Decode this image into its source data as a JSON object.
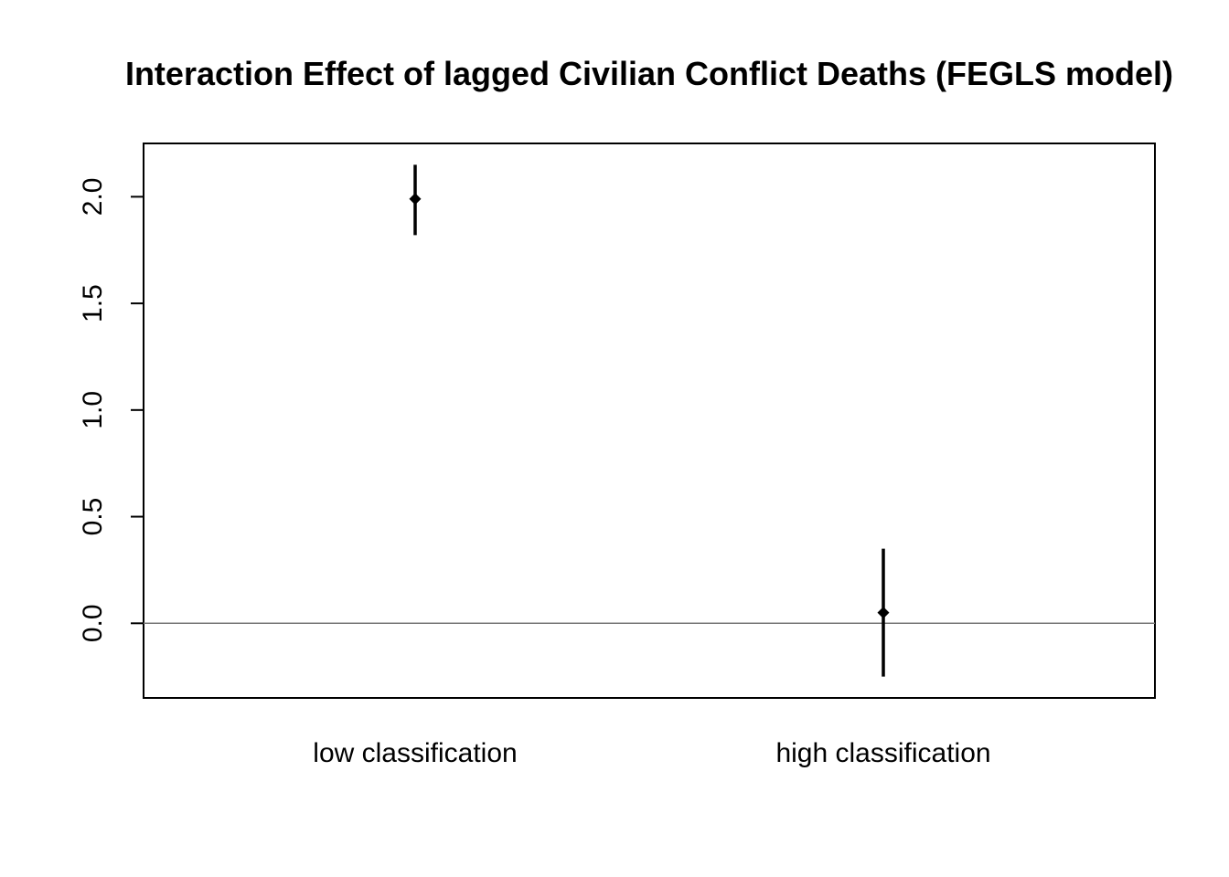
{
  "chart_data": {
    "type": "scatter",
    "title": "Interaction Effect of lagged Civilian Conflict Deaths (FEGLS model)",
    "xlabel": "",
    "ylabel": "",
    "categories": [
      "low classification",
      "high classification"
    ],
    "series": [
      {
        "values": [
          1.99,
          0.05
        ],
        "ci_low": [
          1.82,
          -0.25
        ],
        "ci_high": [
          2.15,
          0.35
        ]
      }
    ],
    "ylim": [
      -0.35,
      2.25
    ],
    "yticks": [
      "0.0",
      "0.5",
      "1.0",
      "1.5",
      "2.0"
    ],
    "reference_line": 0,
    "grid": false,
    "legend": "none",
    "colors": {
      "marks": "#000000",
      "reference_line": "#777777",
      "frame": "#000000"
    }
  }
}
